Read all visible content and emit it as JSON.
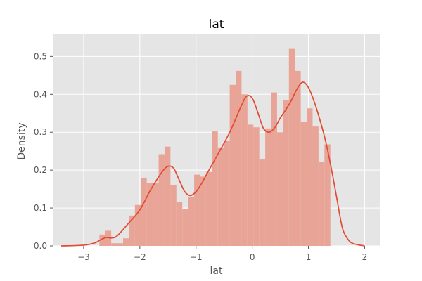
{
  "chart_data": {
    "type": "bar",
    "title": "lat",
    "xlabel": "lat",
    "ylabel": "Density",
    "xlim": [
      -3.55,
      2.27
    ],
    "ylim": [
      0,
      0.56
    ],
    "xticks": [
      -3,
      -2,
      -1,
      0,
      1,
      2
    ],
    "yticks": [
      0.0,
      0.1,
      0.2,
      0.3,
      0.4,
      0.5
    ],
    "xtick_labels": [
      "−3",
      "−2",
      "−1",
      "0",
      "1",
      "2"
    ],
    "ytick_labels": [
      "0.0",
      "0.1",
      "0.2",
      "0.3",
      "0.4",
      "0.5"
    ],
    "grid": true,
    "histogram": {
      "bin_start": -2.72,
      "bin_width": 0.1054,
      "values": [
        0.03,
        0.04,
        0.007,
        0.007,
        0.02,
        0.08,
        0.108,
        0.18,
        0.165,
        0.167,
        0.242,
        0.262,
        0.16,
        0.115,
        0.097,
        0.13,
        0.188,
        0.183,
        0.195,
        0.302,
        0.26,
        0.278,
        0.425,
        0.462,
        0.4,
        0.32,
        0.313,
        0.228,
        0.31,
        0.405,
        0.3,
        0.385,
        0.52,
        0.462,
        0.328,
        0.363,
        0.315,
        0.222,
        0.268
      ],
      "color": "#e8a597"
    },
    "kde": {
      "x": [
        -3.4,
        -3.0,
        -2.8,
        -2.7,
        -2.6,
        -2.5,
        -2.4,
        -2.2,
        -2.0,
        -1.8,
        -1.6,
        -1.5,
        -1.4,
        -1.3,
        -1.2,
        -1.1,
        -1.0,
        -0.9,
        -0.8,
        -0.6,
        -0.4,
        -0.2,
        -0.1,
        0.0,
        0.1,
        0.2,
        0.3,
        0.4,
        0.5,
        0.6,
        0.7,
        0.8,
        0.9,
        1.0,
        1.1,
        1.2,
        1.3,
        1.4,
        1.5,
        1.6,
        1.7,
        1.8,
        2.0
      ],
      "y": [
        0.0,
        0.002,
        0.008,
        0.016,
        0.022,
        0.021,
        0.027,
        0.06,
        0.095,
        0.15,
        0.196,
        0.21,
        0.205,
        0.174,
        0.143,
        0.133,
        0.143,
        0.165,
        0.192,
        0.245,
        0.3,
        0.368,
        0.395,
        0.39,
        0.352,
        0.31,
        0.3,
        0.312,
        0.338,
        0.36,
        0.385,
        0.415,
        0.432,
        0.418,
        0.382,
        0.335,
        0.28,
        0.21,
        0.13,
        0.05,
        0.018,
        0.006,
        0.0
      ],
      "color": "#e24a33"
    },
    "colors": {
      "plot_background": "#e5e5e5",
      "grid": "#ffffff",
      "text": "#555555"
    }
  }
}
